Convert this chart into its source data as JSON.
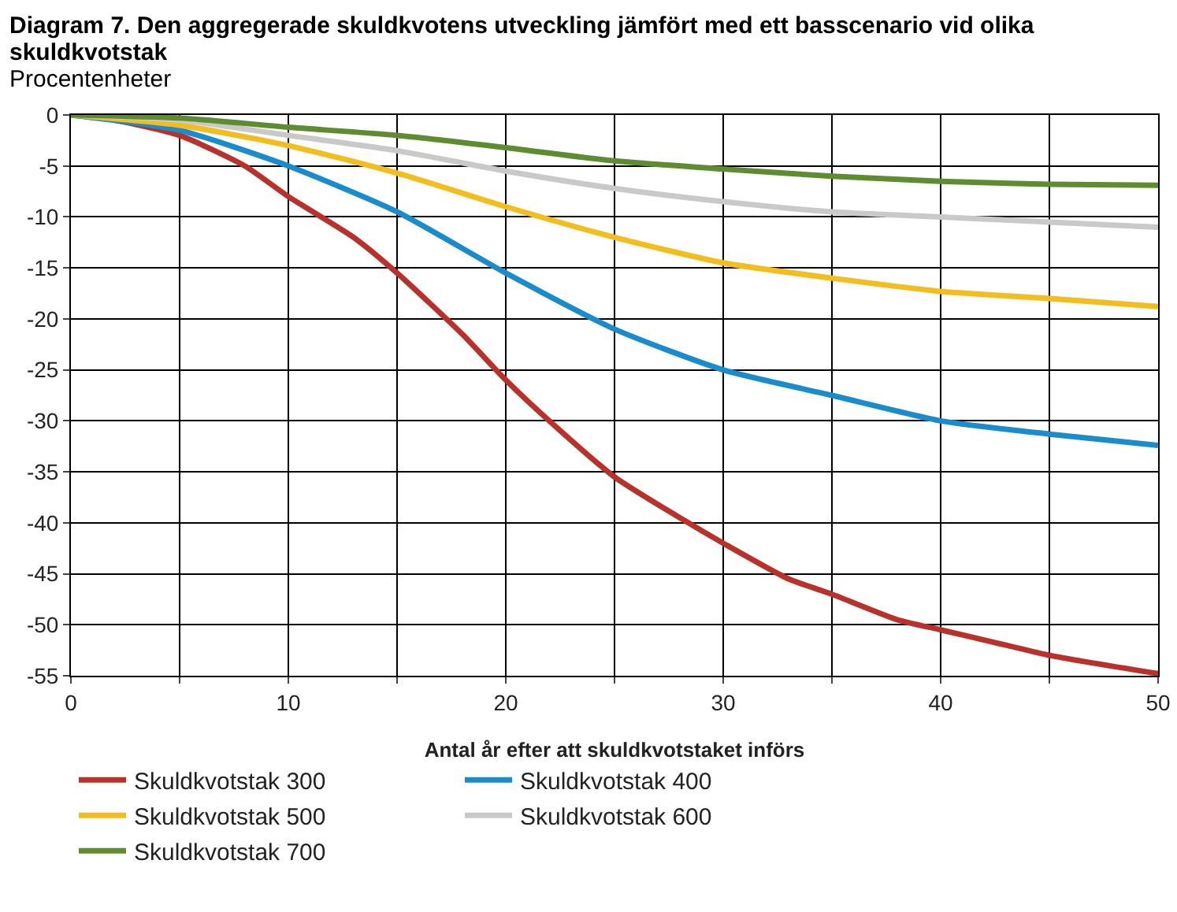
{
  "chart_data": {
    "type": "line",
    "title": "Diagram 7. Den aggregerade skuldkvotens utveckling jämfört med ett basscenario vid olika skuldkvotstak",
    "subtitle": "Procentenheter",
    "xlabel": "Antal år efter att skuldkvotstaket införs",
    "x": [
      0,
      5,
      10,
      15,
      20,
      25,
      30,
      35,
      40,
      45,
      50
    ],
    "series": [
      {
        "name": "Skuldkvotstak 300",
        "color": "#b8312a",
        "x": [
          0,
          2,
          5,
          8,
          10,
          13,
          15,
          18,
          20,
          22,
          25,
          28,
          30,
          33,
          35,
          38,
          40,
          43,
          45,
          50
        ],
        "values": [
          0,
          -0.5,
          -2,
          -5,
          -8,
          -12,
          -15.5,
          -21.5,
          -26,
          -30,
          -35.5,
          -39.5,
          -42,
          -45.5,
          -47,
          -49.5,
          -50.5,
          -52,
          -53,
          -54.8
        ]
      },
      {
        "name": "Skuldkvotstak 400",
        "color": "#1b8ccb",
        "values": [
          0,
          -1.5,
          -5,
          -9.5,
          -15.5,
          -21,
          -25,
          -27.5,
          -30,
          -31.3,
          -32.4
        ]
      },
      {
        "name": "Skuldkvotstak 500",
        "color": "#f2bd1d",
        "values": [
          0,
          -1,
          -3,
          -5.7,
          -9,
          -12,
          -14.5,
          -16,
          -17.3,
          -18,
          -18.8
        ]
      },
      {
        "name": "Skuldkvotstak 600",
        "color": "#c9c9c9",
        "values": [
          0,
          -0.5,
          -2,
          -3.5,
          -5.5,
          -7.2,
          -8.5,
          -9.5,
          -10,
          -10.5,
          -11
        ]
      },
      {
        "name": "Skuldkvotstak 700",
        "color": "#5f8b31",
        "values": [
          0,
          -0.3,
          -1.2,
          -2,
          -3.2,
          -4.5,
          -5.3,
          -6,
          -6.5,
          -6.8,
          -6.9
        ]
      }
    ],
    "xlim": [
      0,
      50
    ],
    "xticks": [
      0,
      {
        "value": 5,
        "label": null
      },
      10,
      {
        "value": 15,
        "label": null
      },
      20,
      {
        "value": 25,
        "label": null
      },
      30,
      {
        "value": 35,
        "label": null
      },
      40,
      {
        "value": 45,
        "label": null
      },
      50
    ],
    "ylim": [
      -55,
      0
    ],
    "yticks": [
      -55,
      -50,
      -45,
      -40,
      -35,
      -30,
      -25,
      -20,
      -15,
      -10,
      -5,
      0
    ],
    "grid": true,
    "legend": "bottom",
    "marker": "none",
    "line_style": "solid"
  }
}
